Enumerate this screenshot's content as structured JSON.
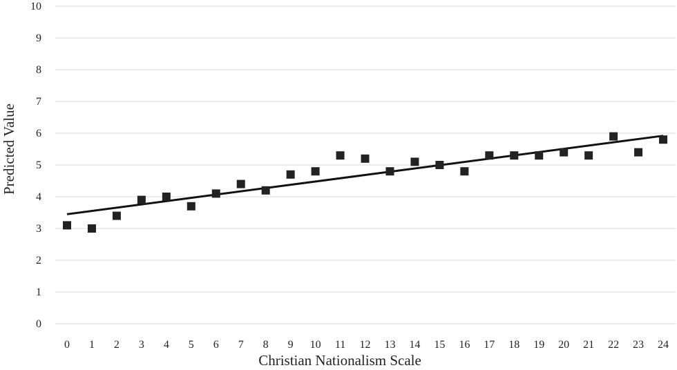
{
  "chart_data": {
    "type": "scatter",
    "xlabel": "Christian Nationalism Scale",
    "ylabel": "Predicted Value",
    "x": [
      0,
      1,
      2,
      3,
      4,
      5,
      6,
      7,
      8,
      9,
      10,
      11,
      12,
      13,
      14,
      15,
      16,
      17,
      18,
      19,
      20,
      21,
      22,
      23,
      24
    ],
    "y": [
      3.1,
      3.0,
      3.4,
      3.9,
      4.0,
      3.7,
      4.1,
      4.4,
      4.2,
      4.7,
      4.8,
      5.3,
      5.2,
      4.8,
      5.1,
      5.0,
      4.8,
      5.3,
      5.3,
      5.3,
      5.4,
      5.3,
      5.9,
      5.4,
      5.8
    ],
    "x_ticks": [
      "0",
      "1",
      "2",
      "3",
      "4",
      "5",
      "6",
      "7",
      "8",
      "9",
      "10",
      "11",
      "12",
      "13",
      "14",
      "15",
      "16",
      "17",
      "18",
      "19",
      "20",
      "21",
      "22",
      "23",
      "24"
    ],
    "y_ticks": [
      "0",
      "1",
      "2",
      "3",
      "4",
      "5",
      "6",
      "7",
      "8",
      "9",
      "10"
    ],
    "ylim": [
      0,
      10
    ],
    "xlim": [
      0,
      24
    ],
    "trendline": {
      "type": "linear",
      "x": [
        0,
        24
      ],
      "y": [
        3.45,
        5.92
      ]
    },
    "grid": true,
    "legend": "none",
    "marker": "square",
    "marker_color": "#222222"
  }
}
